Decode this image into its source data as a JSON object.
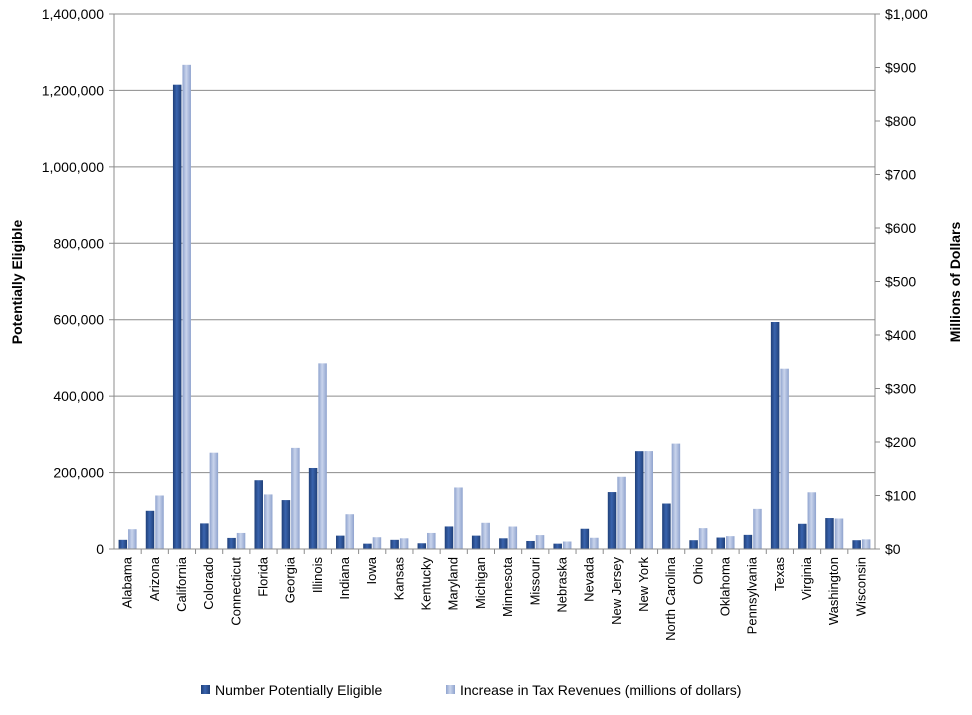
{
  "chart_data": {
    "type": "bar",
    "categories": [
      "Alabama",
      "Arizona",
      "California",
      "Colorado",
      "Connecticut",
      "Florida",
      "Georgia",
      "Illinois",
      "Indiana",
      "Iowa",
      "Kansas",
      "Kentucky",
      "Maryland",
      "Michigan",
      "Minnesota",
      "Missouri",
      "Nebraska",
      "Nevada",
      "New Jersey",
      "New York",
      "North Carolina",
      "Ohio",
      "Oklahoma",
      "Pennsylvania",
      "Texas",
      "Virginia",
      "Washington",
      "Wisconsin"
    ],
    "series": [
      {
        "name": "Number Potentially Eligible",
        "axis": "left",
        "color": "#2F5597",
        "values": [
          24000,
          100000,
          1215000,
          67000,
          29000,
          180000,
          128000,
          212000,
          35000,
          14000,
          24000,
          15000,
          59000,
          35000,
          28000,
          21000,
          14000,
          53000,
          149000,
          256000,
          119000,
          23000,
          30000,
          37000,
          594000,
          66000,
          81000,
          23000
        ]
      },
      {
        "name": "Increase in Tax Revenues (millions of dollars)",
        "axis": "right",
        "color": "#A9B9DC",
        "values": [
          37,
          100,
          905,
          180,
          30,
          102,
          189,
          347,
          65,
          22,
          20,
          30,
          115,
          49,
          42,
          26,
          14,
          21,
          135,
          183,
          197,
          39,
          24,
          75,
          337,
          106,
          57,
          18
        ]
      }
    ],
    "left_axis": {
      "label": "Potentially Eligible",
      "range": [
        0,
        1400000
      ],
      "ticks": [
        0,
        200000,
        400000,
        600000,
        800000,
        1000000,
        1200000,
        1400000
      ],
      "tick_labels": [
        "0",
        "200,000",
        "400,000",
        "600,000",
        "800,000",
        "1,000,000",
        "1,200,000",
        "1,400,000"
      ]
    },
    "right_axis": {
      "label": "Millions of Dollars",
      "range": [
        0,
        1000
      ],
      "ticks": [
        0,
        100,
        200,
        300,
        400,
        500,
        600,
        700,
        800,
        900,
        1000
      ],
      "tick_labels": [
        "$0",
        "$100",
        "$200",
        "$300",
        "$400",
        "$500",
        "$600",
        "$700",
        "$800",
        "$900",
        "$1,000"
      ]
    },
    "grid": true,
    "legend": "bottom"
  }
}
